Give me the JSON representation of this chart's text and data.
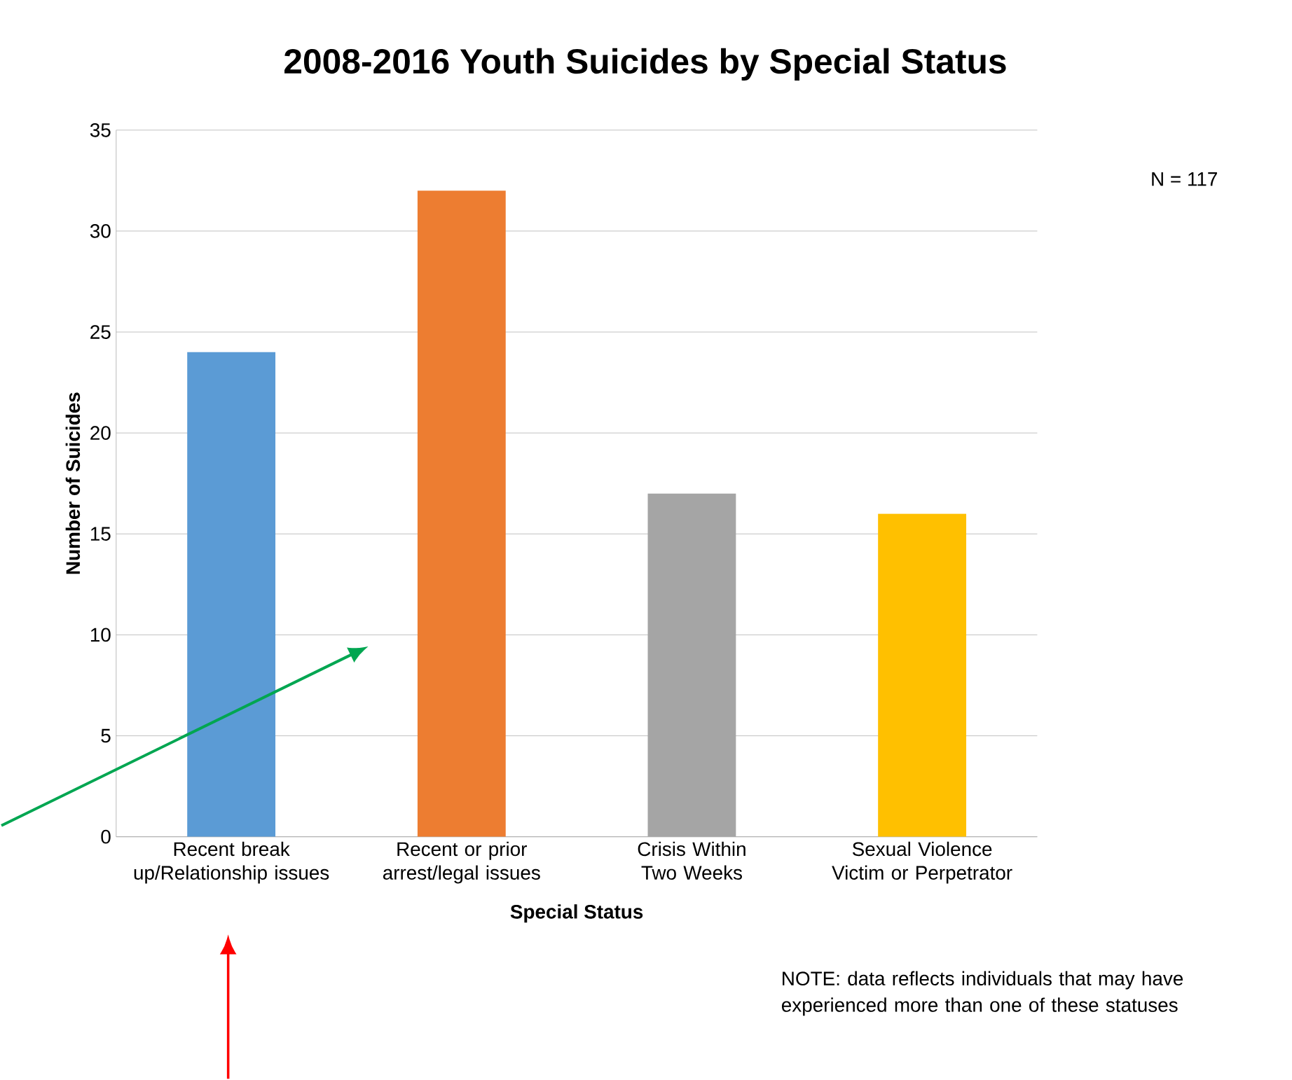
{
  "chart_data": {
    "type": "bar",
    "title": "2008-2016 Youth Suicides by Special Status",
    "xlabel": "Special Status",
    "ylabel": "Number of Suicides",
    "categories": [
      "Recent break up/Relationship issues",
      "Recent or prior arrest/legal issues",
      "Crisis Within Two Weeks",
      "Sexual Violence Victim or Perpetrator"
    ],
    "values": [
      24,
      32,
      17,
      16
    ],
    "colors": [
      "#5b9bd5",
      "#ed7d31",
      "#a5a5a5",
      "#ffc000"
    ],
    "ylim": [
      0,
      35
    ],
    "yticks": [
      0,
      5,
      10,
      15,
      20,
      25,
      30,
      35
    ],
    "grid": "y",
    "annotations": [
      "N = 117",
      "NOTE: data reflects individuals that may have experienced more than one of these statuses"
    ]
  }
}
